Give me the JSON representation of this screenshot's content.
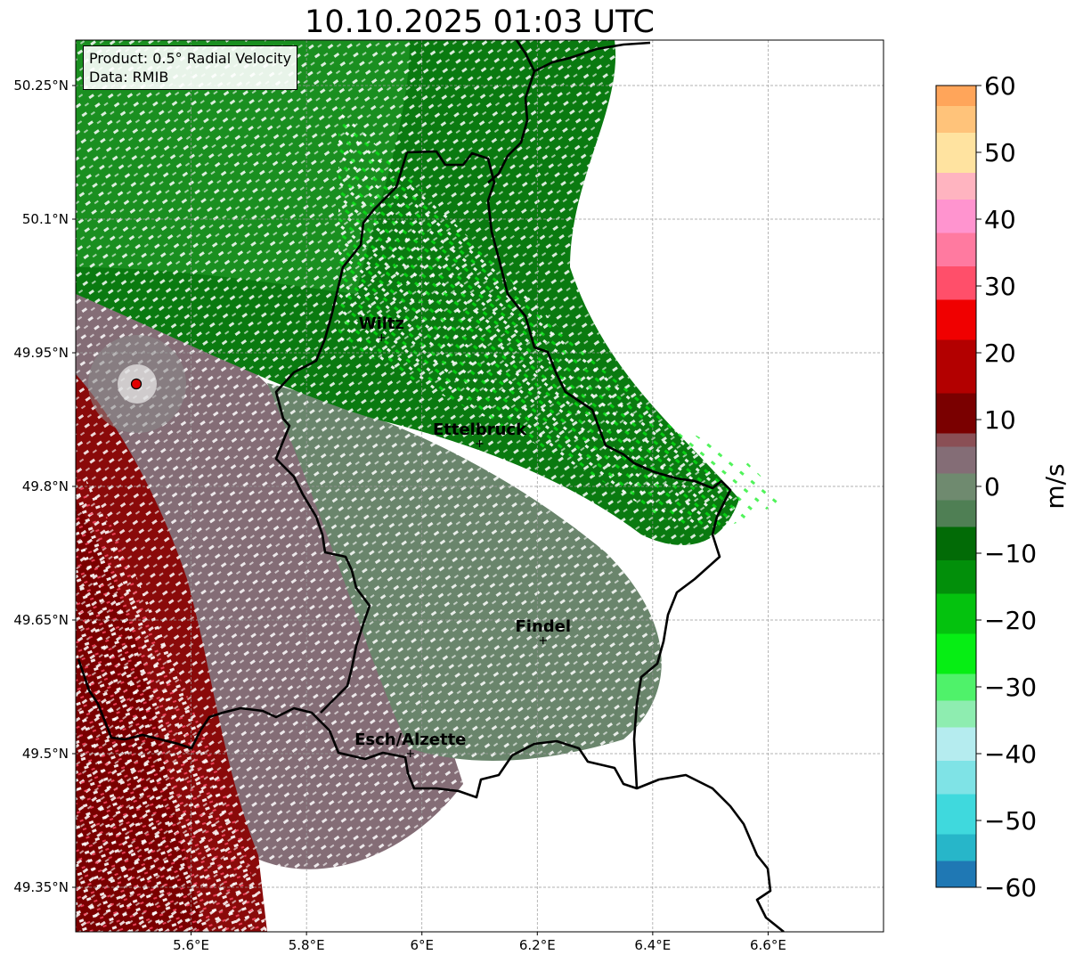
{
  "title": "10.10.2025 01:03 UTC",
  "info": {
    "product": "Product: 0.5° Radial Velocity",
    "source": "Data: RMIB"
  },
  "axes": {
    "lon_range": [
      5.4,
      6.8
    ],
    "lat_range": [
      49.3,
      50.3
    ],
    "lon_ticks": [
      {
        "value": 5.6,
        "label": "5.6°E"
      },
      {
        "value": 5.8,
        "label": "5.8°E"
      },
      {
        "value": 6.0,
        "label": "6°E"
      },
      {
        "value": 6.2,
        "label": "6.2°E"
      },
      {
        "value": 6.4,
        "label": "6.4°E"
      },
      {
        "value": 6.6,
        "label": "6.6°E"
      }
    ],
    "lat_ticks": [
      {
        "value": 50.25,
        "label": "50.25°N"
      },
      {
        "value": 50.1,
        "label": "50.1°N"
      },
      {
        "value": 49.95,
        "label": "49.95°N"
      },
      {
        "value": 49.8,
        "label": "49.8°N"
      },
      {
        "value": 49.65,
        "label": "49.65°N"
      },
      {
        "value": 49.5,
        "label": "49.5°N"
      },
      {
        "value": 49.35,
        "label": "49.35°N"
      }
    ],
    "grid": true
  },
  "radar_site": {
    "lon": 5.505,
    "lat": 49.915
  },
  "cities": [
    {
      "name": "Wiltz",
      "lon": 5.93,
      "lat": 49.967
    },
    {
      "name": "Ettelbruck",
      "lon": 6.1,
      "lat": 49.848
    },
    {
      "name": "Findel",
      "lon": 6.21,
      "lat": 49.627
    },
    {
      "name": "Esch/Alzette",
      "lon": 5.98,
      "lat": 49.5
    }
  ],
  "colorbar": {
    "unit": "m/s",
    "min": -60,
    "max": 60,
    "ticks": [
      {
        "value": 60,
        "label": "60"
      },
      {
        "value": 50,
        "label": "50"
      },
      {
        "value": 40,
        "label": "40"
      },
      {
        "value": 30,
        "label": "30"
      },
      {
        "value": 20,
        "label": "20"
      },
      {
        "value": 10,
        "label": "10"
      },
      {
        "value": 0,
        "label": "0"
      },
      {
        "value": -10,
        "label": "−10"
      },
      {
        "value": -20,
        "label": "−20"
      },
      {
        "value": -30,
        "label": "−30"
      },
      {
        "value": -40,
        "label": "−40"
      },
      {
        "value": -50,
        "label": "−50"
      },
      {
        "value": -60,
        "label": "−60"
      }
    ],
    "stops": [
      {
        "from": -60,
        "to": -56,
        "color": "#1f78b4"
      },
      {
        "from": -56,
        "to": -52,
        "color": "#27b6c9"
      },
      {
        "from": -52,
        "to": -46,
        "color": "#3fd9dd"
      },
      {
        "from": -46,
        "to": -41,
        "color": "#7fe3e6"
      },
      {
        "from": -41,
        "to": -36,
        "color": "#b5ecef"
      },
      {
        "from": -36,
        "to": -32,
        "color": "#8eedb0"
      },
      {
        "from": -32,
        "to": -28,
        "color": "#4ff26a"
      },
      {
        "from": -28,
        "to": -22,
        "color": "#06ee14"
      },
      {
        "from": -22,
        "to": -16,
        "color": "#04c20e"
      },
      {
        "from": -16,
        "to": -11,
        "color": "#028f0a"
      },
      {
        "from": -11,
        "to": -6,
        "color": "#026b06"
      },
      {
        "from": -6,
        "to": -2,
        "color": "#4f7f54"
      },
      {
        "from": -2,
        "to": 2,
        "color": "#6f8a6f"
      },
      {
        "from": 2,
        "to": 6,
        "color": "#846d76"
      },
      {
        "from": 6,
        "to": 8,
        "color": "#8a4f55"
      },
      {
        "from": 8,
        "to": 14,
        "color": "#7a0000"
      },
      {
        "from": 14,
        "to": 22,
        "color": "#b30000"
      },
      {
        "from": 22,
        "to": 28,
        "color": "#f00000"
      },
      {
        "from": 28,
        "to": 33,
        "color": "#ff4f6a"
      },
      {
        "from": 33,
        "to": 38,
        "color": "#ff7aa0"
      },
      {
        "from": 38,
        "to": 43,
        "color": "#ff94cf"
      },
      {
        "from": 43,
        "to": 47,
        "color": "#ffb4c0"
      },
      {
        "from": 47,
        "to": 53,
        "color": "#ffe3a0"
      },
      {
        "from": 53,
        "to": 57,
        "color": "#ffc37a"
      },
      {
        "from": 57,
        "to": 60,
        "color": "#ffa55a"
      }
    ]
  },
  "velocity_colors": {
    "outbound_strong": "#7a0000",
    "outbound_mid": "#b30000",
    "neutral_pink": "#846d76",
    "neutral_green": "#6f8a6f",
    "inbound_dark": "#026b06",
    "inbound_mid": "#028f0a",
    "inbound_bright": "#06ee14"
  }
}
